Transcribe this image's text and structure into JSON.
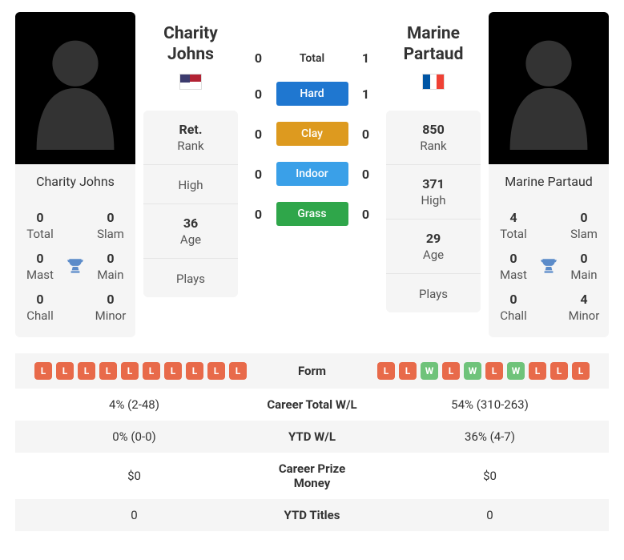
{
  "colors": {
    "loss": "#e86a4a",
    "win": "#6fc37a",
    "hard": "#1f77d0",
    "clay": "#dd9a1f",
    "indoor": "#3aa0e8",
    "grass": "#2fa64a",
    "card_bg": "#f5f5f5",
    "text": "#333333"
  },
  "surfaces": [
    {
      "key": "total",
      "label": "Total",
      "p1": "0",
      "p2": "1",
      "plain": true
    },
    {
      "key": "hard",
      "label": "Hard",
      "p1": "0",
      "p2": "1",
      "colorKey": "hard"
    },
    {
      "key": "clay",
      "label": "Clay",
      "p1": "0",
      "p2": "0",
      "colorKey": "clay"
    },
    {
      "key": "indoor",
      "label": "Indoor",
      "p1": "0",
      "p2": "0",
      "colorKey": "indoor"
    },
    {
      "key": "grass",
      "label": "Grass",
      "p1": "0",
      "p2": "0",
      "colorKey": "grass"
    }
  ],
  "statStackLabels": {
    "rank": "Rank",
    "high": "High",
    "age": "Age",
    "plays": "Plays"
  },
  "titleLabels": {
    "total": "Total",
    "slam": "Slam",
    "mast": "Mast",
    "main": "Main",
    "chall": "Chall",
    "minor": "Minor"
  },
  "p1": {
    "name": "Charity Johns",
    "first": "Charity",
    "last": "Johns",
    "flag": "us",
    "rank": "Ret.",
    "high": "",
    "age": "36",
    "plays": "",
    "titles": {
      "total": "0",
      "slam": "0",
      "mast": "0",
      "main": "0",
      "chall": "0",
      "minor": "0"
    },
    "form": [
      "L",
      "L",
      "L",
      "L",
      "L",
      "L",
      "L",
      "L",
      "L",
      "L"
    ]
  },
  "p2": {
    "name": "Marine Partaud",
    "first": "Marine",
    "last": "Partaud",
    "flag": "fr",
    "rank": "850",
    "high": "371",
    "age": "29",
    "plays": "",
    "titles": {
      "total": "4",
      "slam": "0",
      "mast": "0",
      "main": "0",
      "chall": "0",
      "minor": "4"
    },
    "form": [
      "L",
      "L",
      "W",
      "L",
      "W",
      "L",
      "W",
      "L",
      "L",
      "L"
    ]
  },
  "comparison": [
    {
      "label": "Form",
      "p1": null,
      "p2": null,
      "isForm": true
    },
    {
      "label": "Career Total W/L",
      "p1": "4% (2-48)",
      "p2": "54% (310-263)"
    },
    {
      "label": "YTD W/L",
      "p1": "0% (0-0)",
      "p2": "36% (4-7)"
    },
    {
      "label": "Career Prize Money",
      "p1": "$0",
      "p2": "$0"
    },
    {
      "label": "YTD Titles",
      "p1": "0",
      "p2": "0"
    }
  ]
}
